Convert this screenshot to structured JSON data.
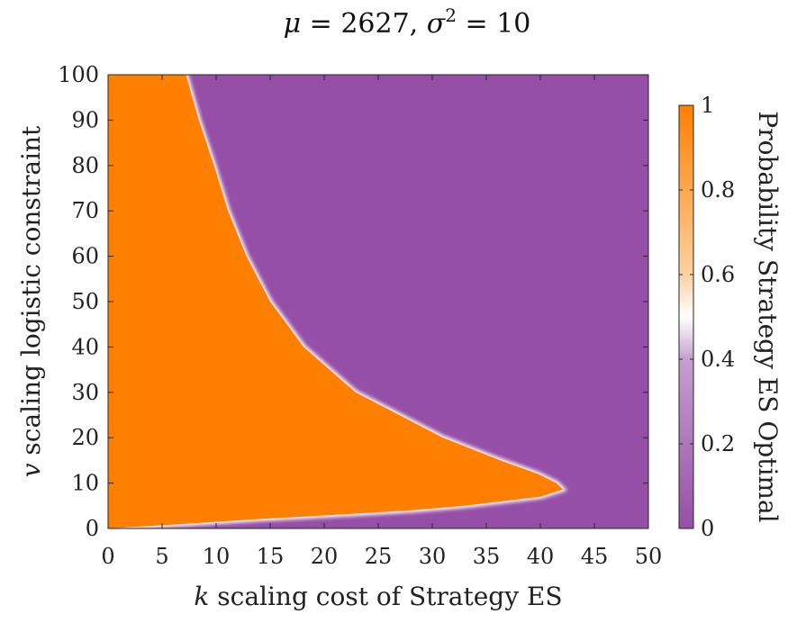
{
  "chart_data": {
    "type": "heatmap",
    "title_parts": {
      "mu_symbol": "μ",
      "mu_eq": " = 2627, ",
      "sigma_symbol": "σ",
      "sigma_exp": "2",
      "sigma_eq": " = 10"
    },
    "xlabel_var": "k",
    "xlabel_text": " scaling cost of Strategy ES",
    "ylabel_var": "v",
    "ylabel_text": " scaling logistic constraint",
    "colorbar_label": "Probability Strategy ES Optimal",
    "xlim": [
      0,
      50
    ],
    "ylim": [
      0,
      100
    ],
    "clim": [
      0,
      1
    ],
    "x_ticks": [
      0,
      5,
      10,
      15,
      20,
      25,
      30,
      35,
      40,
      45,
      50
    ],
    "x_tick_labels": [
      "0",
      "5",
      "10",
      "15",
      "20",
      "25",
      "30",
      "35",
      "40",
      "45",
      "50"
    ],
    "y_ticks": [
      0,
      10,
      20,
      30,
      40,
      50,
      60,
      70,
      80,
      90,
      100
    ],
    "y_tick_labels": [
      "0",
      "10",
      "20",
      "30",
      "40",
      "50",
      "60",
      "70",
      "80",
      "90",
      "100"
    ],
    "colorbar_ticks": [
      0,
      0.2,
      0.4,
      0.6,
      0.8,
      1
    ],
    "colorbar_tick_labels": [
      "0",
      "0.2",
      "0.4",
      "0.6",
      "0.8",
      "1"
    ],
    "colormap": [
      "#954fa6",
      "#ffffff",
      "#ff8000"
    ],
    "boundary_upper": [
      {
        "v": 100,
        "k": 7.2
      },
      {
        "v": 95,
        "k": 7.8
      },
      {
        "v": 90,
        "k": 8.4
      },
      {
        "v": 80,
        "k": 9.8
      },
      {
        "v": 70,
        "k": 11.1
      },
      {
        "v": 60,
        "k": 12.8
      },
      {
        "v": 50,
        "k": 15.0
      },
      {
        "v": 40,
        "k": 18.1
      },
      {
        "v": 30,
        "k": 22.9
      },
      {
        "v": 20,
        "k": 31.0
      },
      {
        "v": 15,
        "k": 36.3
      },
      {
        "v": 12,
        "k": 39.8
      },
      {
        "v": 10,
        "k": 41.5
      },
      {
        "v": 8.6,
        "k": 42.1
      }
    ],
    "boundary_lower": [
      {
        "v": 8.6,
        "k": 42.1
      },
      {
        "v": 7,
        "k": 40.0
      },
      {
        "v": 5,
        "k": 33.0
      },
      {
        "v": 4,
        "k": 28.0
      },
      {
        "v": 3,
        "k": 21.0
      },
      {
        "v": 2,
        "k": 13.5
      },
      {
        "v": 1,
        "k": 7.0
      },
      {
        "v": 0,
        "k": 0
      }
    ]
  }
}
